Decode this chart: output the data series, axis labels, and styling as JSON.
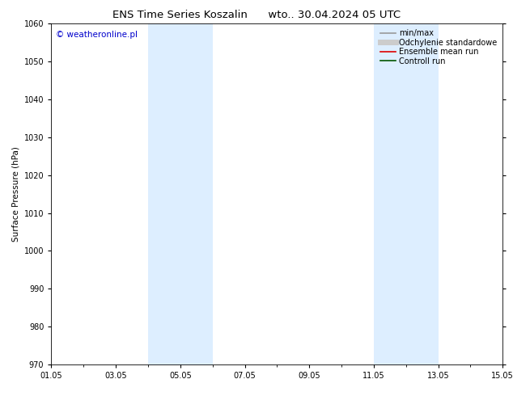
{
  "title_left": "ENS Time Series Koszalin",
  "title_right": "wto.. 30.04.2024 05 UTC",
  "ylabel": "Surface Pressure (hPa)",
  "ylim": [
    970,
    1060
  ],
  "yticks": [
    970,
    980,
    990,
    1000,
    1010,
    1020,
    1030,
    1040,
    1050,
    1060
  ],
  "xtick_labels": [
    "01.05",
    "03.05",
    "05.05",
    "07.05",
    "09.05",
    "11.05",
    "13.05",
    "15.05"
  ],
  "xtick_positions": [
    0,
    2,
    4,
    6,
    8,
    10,
    12,
    14
  ],
  "xlim": [
    0,
    14
  ],
  "blue_bands": [
    {
      "start": 3,
      "end": 5
    },
    {
      "start": 10,
      "end": 12
    }
  ],
  "blue_band_color": "#ddeeff",
  "watermark_text": "© weatheronline.pl",
  "watermark_color": "#0000cc",
  "legend_entries": [
    {
      "label": "min/max",
      "color": "#999999",
      "lw": 1.2
    },
    {
      "label": "Odchylenie standardowe",
      "color": "#cccccc",
      "lw": 5
    },
    {
      "label": "Ensemble mean run",
      "color": "#dd0000",
      "lw": 1.2
    },
    {
      "label": "Controll run",
      "color": "#005500",
      "lw": 1.2
    }
  ],
  "bg_color": "#ffffff",
  "axes_bg_color": "#ffffff",
  "title_fontsize": 9.5,
  "label_fontsize": 7.5,
  "tick_fontsize": 7,
  "legend_fontsize": 7,
  "watermark_fontsize": 7.5
}
